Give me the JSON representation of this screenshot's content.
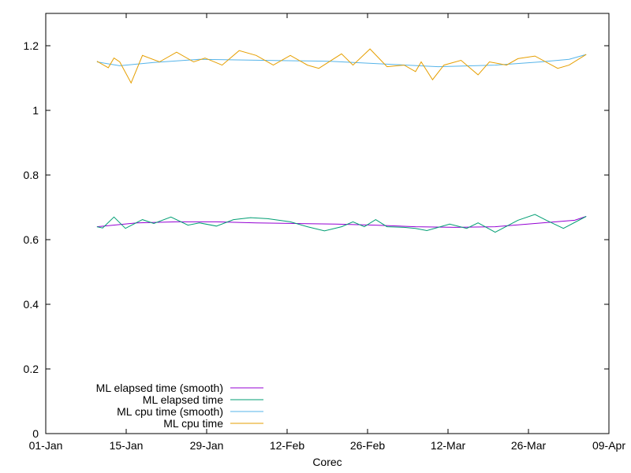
{
  "chart_data": {
    "type": "line",
    "title": "",
    "xlabel": "Corec",
    "ylabel": "",
    "x_ticks": [
      "01-Jan",
      "15-Jan",
      "29-Jan",
      "12-Feb",
      "26-Feb",
      "12-Mar",
      "26-Mar",
      "09-Apr"
    ],
    "y_ticks": [
      "0",
      "0.2",
      "0.4",
      "0.6",
      "0.8",
      "1",
      "1.2"
    ],
    "xlim": [
      "2020-01-01",
      "2020-04-09"
    ],
    "ylim": [
      0,
      1.3
    ],
    "grid": false,
    "legend_position": "bottom-left",
    "series": [
      {
        "name": "ML elapsed time (smooth)",
        "color": "#9400d3",
        "points": [
          [
            "2020-01-10",
            0.64
          ],
          [
            "2020-01-17",
            0.652
          ],
          [
            "2020-01-24",
            0.655
          ],
          [
            "2020-01-31",
            0.655
          ],
          [
            "2020-02-07",
            0.652
          ],
          [
            "2020-02-14",
            0.65
          ],
          [
            "2020-02-21",
            0.648
          ],
          [
            "2020-02-28",
            0.645
          ],
          [
            "2020-03-06",
            0.64
          ],
          [
            "2020-03-13",
            0.638
          ],
          [
            "2020-03-20",
            0.64
          ],
          [
            "2020-03-27",
            0.65
          ],
          [
            "2020-04-03",
            0.66
          ],
          [
            "2020-04-05",
            0.672
          ]
        ]
      },
      {
        "name": "ML elapsed time",
        "color": "#009e73",
        "points": [
          [
            "2020-01-10",
            0.64
          ],
          [
            "2020-01-11",
            0.636
          ],
          [
            "2020-01-13",
            0.67
          ],
          [
            "2020-01-15",
            0.635
          ],
          [
            "2020-01-18",
            0.662
          ],
          [
            "2020-01-20",
            0.65
          ],
          [
            "2020-01-23",
            0.67
          ],
          [
            "2020-01-26",
            0.645
          ],
          [
            "2020-01-28",
            0.652
          ],
          [
            "2020-01-31",
            0.642
          ],
          [
            "2020-02-03",
            0.662
          ],
          [
            "2020-02-06",
            0.668
          ],
          [
            "2020-02-09",
            0.665
          ],
          [
            "2020-02-13",
            0.655
          ],
          [
            "2020-02-16",
            0.64
          ],
          [
            "2020-02-19",
            0.627
          ],
          [
            "2020-02-22",
            0.64
          ],
          [
            "2020-02-24",
            0.655
          ],
          [
            "2020-02-26",
            0.64
          ],
          [
            "2020-02-28",
            0.662
          ],
          [
            "2020-03-01",
            0.64
          ],
          [
            "2020-03-04",
            0.638
          ],
          [
            "2020-03-06",
            0.635
          ],
          [
            "2020-03-08",
            0.628
          ],
          [
            "2020-03-12",
            0.648
          ],
          [
            "2020-03-15",
            0.635
          ],
          [
            "2020-03-17",
            0.652
          ],
          [
            "2020-03-20",
            0.623
          ],
          [
            "2020-03-24",
            0.66
          ],
          [
            "2020-03-27",
            0.678
          ],
          [
            "2020-03-29",
            0.66
          ],
          [
            "2020-04-01",
            0.635
          ],
          [
            "2020-04-05",
            0.672
          ]
        ]
      },
      {
        "name": "ML cpu time (smooth)",
        "color": "#56b4e9",
        "points": [
          [
            "2020-01-10",
            1.15
          ],
          [
            "2020-01-14",
            1.138
          ],
          [
            "2020-01-20",
            1.148
          ],
          [
            "2020-01-28",
            1.158
          ],
          [
            "2020-02-08",
            1.155
          ],
          [
            "2020-02-20",
            1.152
          ],
          [
            "2020-03-01",
            1.143
          ],
          [
            "2020-03-10",
            1.135
          ],
          [
            "2020-03-20",
            1.14
          ],
          [
            "2020-03-28",
            1.15
          ],
          [
            "2020-04-02",
            1.158
          ],
          [
            "2020-04-05",
            1.173
          ]
        ]
      },
      {
        "name": "ML cpu time",
        "color": "#e69f00",
        "points": [
          [
            "2020-01-10",
            1.152
          ],
          [
            "2020-01-12",
            1.132
          ],
          [
            "2020-01-13",
            1.162
          ],
          [
            "2020-01-14",
            1.15
          ],
          [
            "2020-01-16",
            1.085
          ],
          [
            "2020-01-18",
            1.17
          ],
          [
            "2020-01-21",
            1.15
          ],
          [
            "2020-01-24",
            1.18
          ],
          [
            "2020-01-27",
            1.15
          ],
          [
            "2020-01-29",
            1.162
          ],
          [
            "2020-02-01",
            1.14
          ],
          [
            "2020-02-04",
            1.185
          ],
          [
            "2020-02-07",
            1.17
          ],
          [
            "2020-02-10",
            1.14
          ],
          [
            "2020-02-13",
            1.17
          ],
          [
            "2020-02-16",
            1.14
          ],
          [
            "2020-02-18",
            1.13
          ],
          [
            "2020-02-22",
            1.175
          ],
          [
            "2020-02-24",
            1.14
          ],
          [
            "2020-02-27",
            1.19
          ],
          [
            "2020-03-01",
            1.135
          ],
          [
            "2020-03-04",
            1.14
          ],
          [
            "2020-03-06",
            1.12
          ],
          [
            "2020-03-07",
            1.15
          ],
          [
            "2020-03-09",
            1.095
          ],
          [
            "2020-03-11",
            1.14
          ],
          [
            "2020-03-14",
            1.155
          ],
          [
            "2020-03-17",
            1.11
          ],
          [
            "2020-03-19",
            1.15
          ],
          [
            "2020-03-22",
            1.14
          ],
          [
            "2020-03-24",
            1.16
          ],
          [
            "2020-03-27",
            1.168
          ],
          [
            "2020-03-31",
            1.13
          ],
          [
            "2020-04-02",
            1.14
          ],
          [
            "2020-04-05",
            1.173
          ]
        ]
      }
    ]
  }
}
